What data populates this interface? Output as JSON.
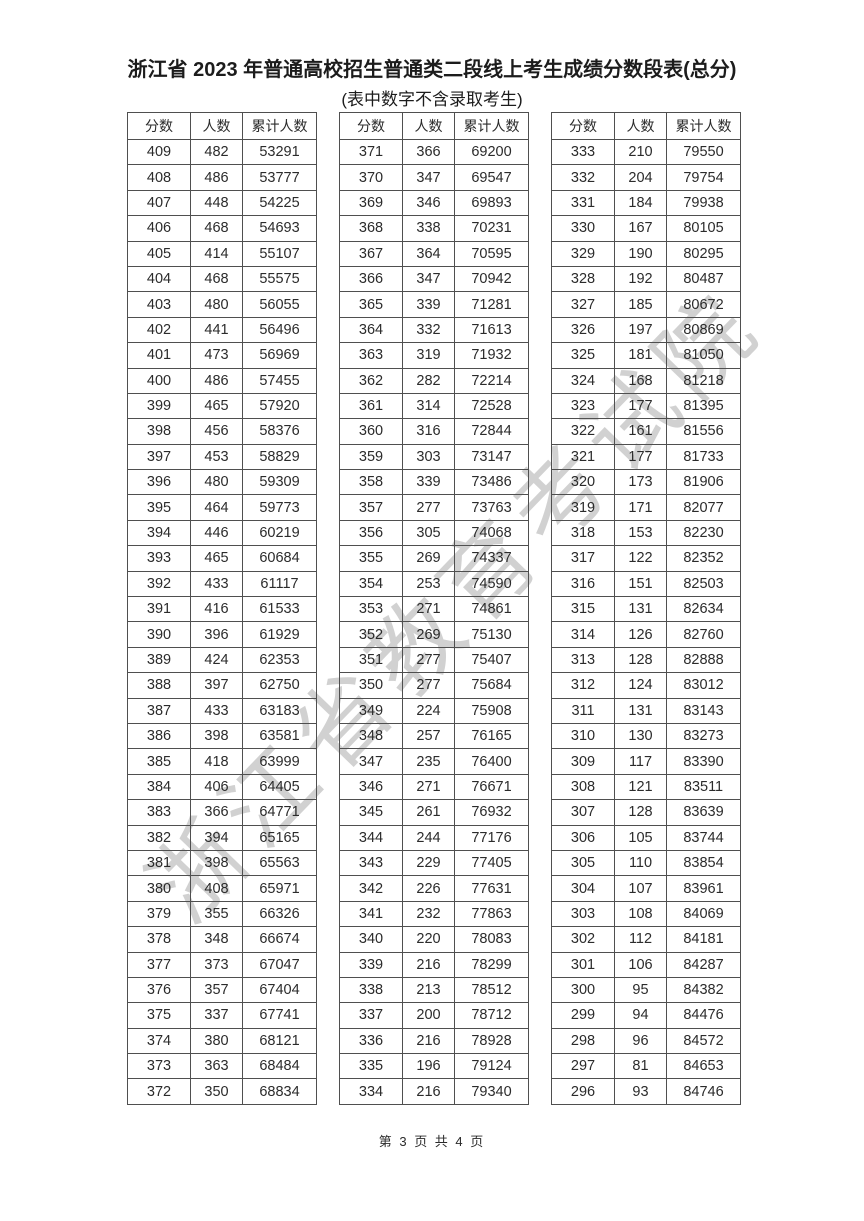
{
  "page": {
    "title": "浙江省 2023 年普通高校招生普通类二段线上考生成绩分数段表(总分)",
    "subtitle": "(表中数字不含录取考生)",
    "footer": "第 3 页 共 4 页",
    "watermark": "浙江省教育考试院"
  },
  "colors": {
    "text": "#2b2b2b",
    "border": "#4f4f4f",
    "watermark": "#acacac"
  },
  "columns": [
    "分数",
    "人数",
    "累计人数"
  ],
  "tables": [
    {
      "rows": [
        [
          409,
          482,
          53291
        ],
        [
          408,
          486,
          53777
        ],
        [
          407,
          448,
          54225
        ],
        [
          406,
          468,
          54693
        ],
        [
          405,
          414,
          55107
        ],
        [
          404,
          468,
          55575
        ],
        [
          403,
          480,
          56055
        ],
        [
          402,
          441,
          56496
        ],
        [
          401,
          473,
          56969
        ],
        [
          400,
          486,
          57455
        ],
        [
          399,
          465,
          57920
        ],
        [
          398,
          456,
          58376
        ],
        [
          397,
          453,
          58829
        ],
        [
          396,
          480,
          59309
        ],
        [
          395,
          464,
          59773
        ],
        [
          394,
          446,
          60219
        ],
        [
          393,
          465,
          60684
        ],
        [
          392,
          433,
          61117
        ],
        [
          391,
          416,
          61533
        ],
        [
          390,
          396,
          61929
        ],
        [
          389,
          424,
          62353
        ],
        [
          388,
          397,
          62750
        ],
        [
          387,
          433,
          63183
        ],
        [
          386,
          398,
          63581
        ],
        [
          385,
          418,
          63999
        ],
        [
          384,
          406,
          64405
        ],
        [
          383,
          366,
          64771
        ],
        [
          382,
          394,
          65165
        ],
        [
          381,
          398,
          65563
        ],
        [
          380,
          408,
          65971
        ],
        [
          379,
          355,
          66326
        ],
        [
          378,
          348,
          66674
        ],
        [
          377,
          373,
          67047
        ],
        [
          376,
          357,
          67404
        ],
        [
          375,
          337,
          67741
        ],
        [
          374,
          380,
          68121
        ],
        [
          373,
          363,
          68484
        ],
        [
          372,
          350,
          68834
        ]
      ]
    },
    {
      "rows": [
        [
          371,
          366,
          69200
        ],
        [
          370,
          347,
          69547
        ],
        [
          369,
          346,
          69893
        ],
        [
          368,
          338,
          70231
        ],
        [
          367,
          364,
          70595
        ],
        [
          366,
          347,
          70942
        ],
        [
          365,
          339,
          71281
        ],
        [
          364,
          332,
          71613
        ],
        [
          363,
          319,
          71932
        ],
        [
          362,
          282,
          72214
        ],
        [
          361,
          314,
          72528
        ],
        [
          360,
          316,
          72844
        ],
        [
          359,
          303,
          73147
        ],
        [
          358,
          339,
          73486
        ],
        [
          357,
          277,
          73763
        ],
        [
          356,
          305,
          74068
        ],
        [
          355,
          269,
          74337
        ],
        [
          354,
          253,
          74590
        ],
        [
          353,
          271,
          74861
        ],
        [
          352,
          269,
          75130
        ],
        [
          351,
          277,
          75407
        ],
        [
          350,
          277,
          75684
        ],
        [
          349,
          224,
          75908
        ],
        [
          348,
          257,
          76165
        ],
        [
          347,
          235,
          76400
        ],
        [
          346,
          271,
          76671
        ],
        [
          345,
          261,
          76932
        ],
        [
          344,
          244,
          77176
        ],
        [
          343,
          229,
          77405
        ],
        [
          342,
          226,
          77631
        ],
        [
          341,
          232,
          77863
        ],
        [
          340,
          220,
          78083
        ],
        [
          339,
          216,
          78299
        ],
        [
          338,
          213,
          78512
        ],
        [
          337,
          200,
          78712
        ],
        [
          336,
          216,
          78928
        ],
        [
          335,
          196,
          79124
        ],
        [
          334,
          216,
          79340
        ]
      ]
    },
    {
      "rows": [
        [
          333,
          210,
          79550
        ],
        [
          332,
          204,
          79754
        ],
        [
          331,
          184,
          79938
        ],
        [
          330,
          167,
          80105
        ],
        [
          329,
          190,
          80295
        ],
        [
          328,
          192,
          80487
        ],
        [
          327,
          185,
          80672
        ],
        [
          326,
          197,
          80869
        ],
        [
          325,
          181,
          81050
        ],
        [
          324,
          168,
          81218
        ],
        [
          323,
          177,
          81395
        ],
        [
          322,
          161,
          81556
        ],
        [
          321,
          177,
          81733
        ],
        [
          320,
          173,
          81906
        ],
        [
          319,
          171,
          82077
        ],
        [
          318,
          153,
          82230
        ],
        [
          317,
          122,
          82352
        ],
        [
          316,
          151,
          82503
        ],
        [
          315,
          131,
          82634
        ],
        [
          314,
          126,
          82760
        ],
        [
          313,
          128,
          82888
        ],
        [
          312,
          124,
          83012
        ],
        [
          311,
          131,
          83143
        ],
        [
          310,
          130,
          83273
        ],
        [
          309,
          117,
          83390
        ],
        [
          308,
          121,
          83511
        ],
        [
          307,
          128,
          83639
        ],
        [
          306,
          105,
          83744
        ],
        [
          305,
          110,
          83854
        ],
        [
          304,
          107,
          83961
        ],
        [
          303,
          108,
          84069
        ],
        [
          302,
          112,
          84181
        ],
        [
          301,
          106,
          84287
        ],
        [
          300,
          95,
          84382
        ],
        [
          299,
          94,
          84476
        ],
        [
          298,
          96,
          84572
        ],
        [
          297,
          81,
          84653
        ],
        [
          296,
          93,
          84746
        ]
      ]
    }
  ]
}
